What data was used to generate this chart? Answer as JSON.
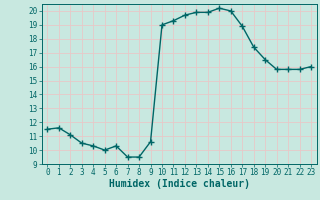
{
  "x": [
    0,
    1,
    2,
    3,
    4,
    5,
    6,
    7,
    8,
    9,
    10,
    11,
    12,
    13,
    14,
    15,
    16,
    17,
    18,
    19,
    20,
    21,
    22,
    23
  ],
  "y": [
    11.5,
    11.6,
    11.1,
    10.5,
    10.3,
    10.0,
    10.3,
    9.5,
    9.5,
    10.6,
    19.0,
    19.3,
    19.7,
    19.9,
    19.9,
    20.2,
    20.0,
    18.9,
    17.4,
    16.5,
    15.8,
    15.8,
    15.8,
    16.0
  ],
  "line_color": "#006666",
  "marker": "+",
  "marker_size": 4,
  "bg_color": "#c8e8e0",
  "grid_color": "#e8c8c8",
  "xlabel": "Humidex (Indice chaleur)",
  "ylim": [
    9,
    20.5
  ],
  "xlim": [
    -0.5,
    23.5
  ],
  "yticks": [
    9,
    10,
    11,
    12,
    13,
    14,
    15,
    16,
    17,
    18,
    19,
    20
  ],
  "xticks": [
    0,
    1,
    2,
    3,
    4,
    5,
    6,
    7,
    8,
    9,
    10,
    11,
    12,
    13,
    14,
    15,
    16,
    17,
    18,
    19,
    20,
    21,
    22,
    23
  ],
  "tick_fontsize": 5.5,
  "xlabel_fontsize": 7,
  "line_width": 1.0,
  "marker_linewidth": 1.0
}
